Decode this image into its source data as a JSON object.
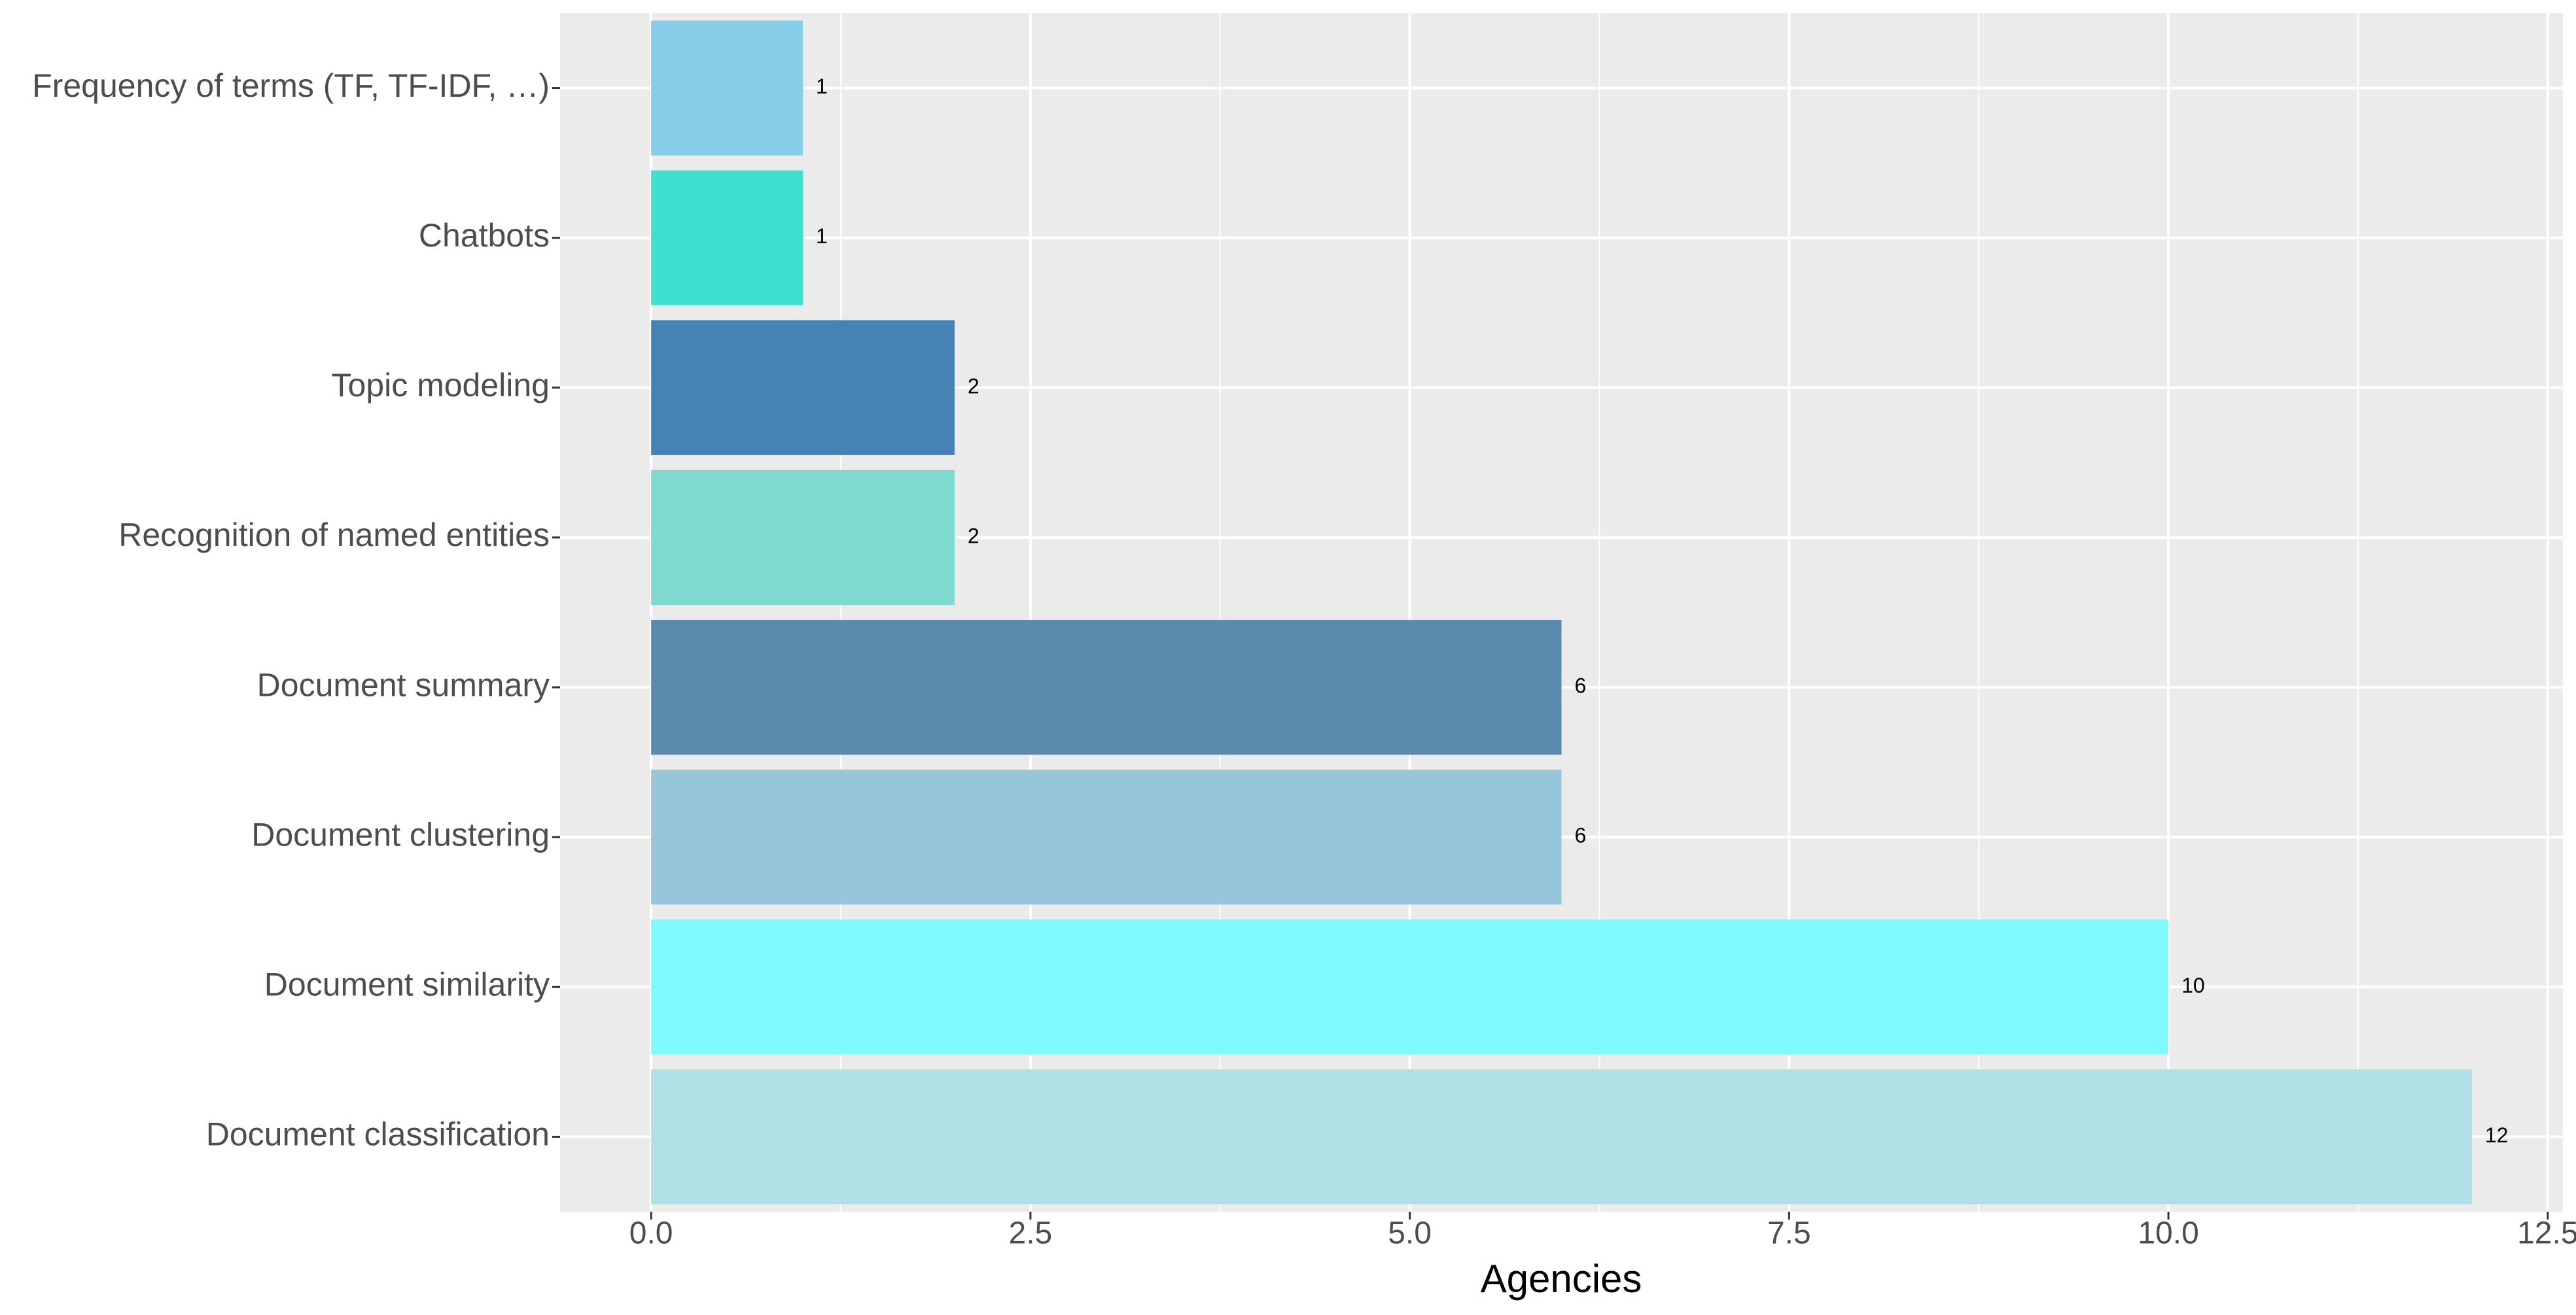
{
  "chart_data": {
    "type": "barh",
    "x_label": "Agencies",
    "categories": [
      "Frequency of terms (TF, TF-IDF, …)",
      "Chatbots",
      "Topic modeling",
      "Recognition of named entities",
      "Document summary",
      "Document clustering",
      "Document similarity",
      "Document classification"
    ],
    "values": [
      1,
      1,
      2,
      2,
      6,
      6,
      10,
      12
    ],
    "colors": [
      "#87ceeb",
      "#40e0d0",
      "#4682b4",
      "#80d9cf",
      "#5a8aae",
      "#96c6d8",
      "#7df9ff",
      "#b0e0e6"
    ],
    "xlim": [
      -0.6,
      12.6
    ],
    "xticks": [
      {
        "value": 0,
        "label": "0.0"
      },
      2.5,
      {
        "value": 5,
        "label": "5.0"
      },
      7.5,
      {
        "value": 10,
        "label": "10.0"
      },
      12.5
    ],
    "grid": true
  }
}
